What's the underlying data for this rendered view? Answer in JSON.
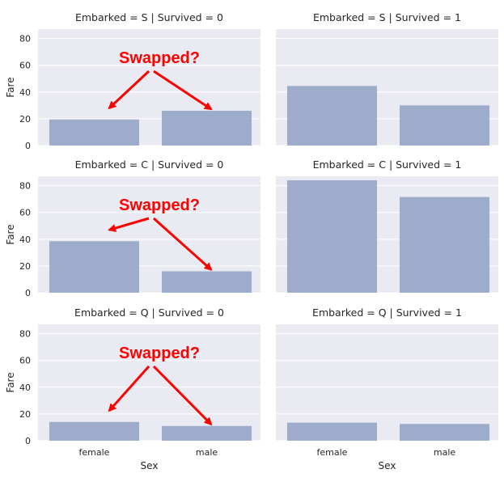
{
  "chart_data": {
    "type": "bar",
    "facet": {
      "rows": [
        "S",
        "C",
        "Q"
      ],
      "cols": [
        "0",
        "1"
      ]
    },
    "categories": [
      "female",
      "male"
    ],
    "ylabel": "Fare",
    "xlabel": "Sex",
    "ylim": [
      0,
      87
    ],
    "yticks": [
      0,
      20,
      40,
      60,
      80
    ],
    "grid": true,
    "panels": [
      {
        "title": "Embarked = S | Survived = 0",
        "values": [
          19.5,
          26.0
        ],
        "annotation": "Swapped?"
      },
      {
        "title": "Embarked = S | Survived = 1",
        "values": [
          44.5,
          30.0
        ]
      },
      {
        "title": "Embarked = C | Survived = 0",
        "values": [
          38.5,
          16.0
        ],
        "annotation": "Swapped?"
      },
      {
        "title": "Embarked = C | Survived = 1",
        "values": [
          84.0,
          71.5
        ]
      },
      {
        "title": "Embarked = Q | Survived = 0",
        "values": [
          14.0,
          11.0
        ],
        "annotation": "Swapped?"
      },
      {
        "title": "Embarked = Q | Survived = 1",
        "values": [
          13.5,
          12.5
        ]
      }
    ],
    "colors": {
      "bar": "#8fa1c4",
      "panel": "#eaeaf2",
      "annotation": "#ff0000"
    }
  }
}
